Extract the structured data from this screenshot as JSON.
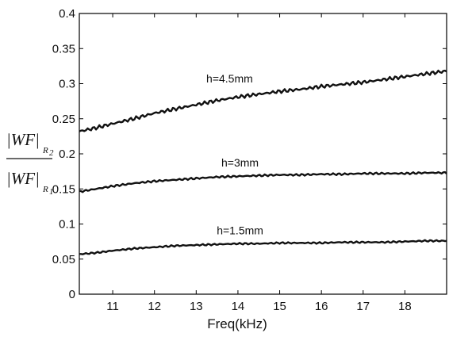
{
  "chart_data": {
    "type": "line",
    "title": "",
    "xlabel": "Freq(kHz)",
    "ylabel": {
      "numerator": "|WF|",
      "numerator_subscript": "R",
      "numerator_subsubscript": "2",
      "denominator": "|WF|",
      "denominator_subscript": "R",
      "denominator_subsubscript": "1"
    },
    "xlim": [
      10.2,
      19.0
    ],
    "ylim": [
      0,
      0.4
    ],
    "xticks": [
      "11",
      "12",
      "13",
      "14",
      "15",
      "16",
      "17",
      "18"
    ],
    "yticks": [
      "0",
      "0.05",
      "0.1",
      "0.15",
      "0.2",
      "0.25",
      "0.3",
      "0.35",
      "0.4"
    ],
    "grid": false,
    "legend": "none",
    "series": [
      {
        "name": "h=4.5mm",
        "x": [
          10.2,
          10.6,
          11.0,
          11.5,
          12.0,
          12.5,
          13.0,
          13.5,
          14.0,
          14.5,
          15.0,
          15.5,
          16.0,
          16.5,
          17.0,
          17.5,
          18.0,
          18.5,
          19.0
        ],
        "y": [
          0.232,
          0.237,
          0.243,
          0.25,
          0.258,
          0.264,
          0.27,
          0.276,
          0.281,
          0.285,
          0.289,
          0.292,
          0.296,
          0.299,
          0.302,
          0.306,
          0.31,
          0.314,
          0.318
        ]
      },
      {
        "name": "h=3mm",
        "x": [
          10.2,
          10.6,
          11.0,
          11.5,
          12.0,
          12.5,
          13.0,
          13.5,
          14.0,
          14.5,
          15.0,
          15.5,
          16.0,
          16.5,
          17.0,
          17.5,
          18.0,
          18.5,
          19.0
        ],
        "y": [
          0.146,
          0.15,
          0.154,
          0.158,
          0.161,
          0.163,
          0.165,
          0.167,
          0.168,
          0.169,
          0.17,
          0.17,
          0.171,
          0.171,
          0.172,
          0.172,
          0.172,
          0.173,
          0.173
        ]
      },
      {
        "name": "h=1.5mm",
        "x": [
          10.2,
          10.6,
          11.0,
          11.5,
          12.0,
          12.5,
          13.0,
          13.5,
          14.0,
          14.5,
          15.0,
          15.5,
          16.0,
          16.5,
          17.0,
          17.5,
          18.0,
          18.5,
          19.0
        ],
        "y": [
          0.057,
          0.059,
          0.062,
          0.065,
          0.067,
          0.069,
          0.07,
          0.071,
          0.072,
          0.072,
          0.073,
          0.073,
          0.073,
          0.074,
          0.074,
          0.074,
          0.075,
          0.076,
          0.076
        ]
      }
    ],
    "colors": {
      "line": "#111111",
      "axis": "#000000",
      "background": "#ffffff"
    }
  }
}
